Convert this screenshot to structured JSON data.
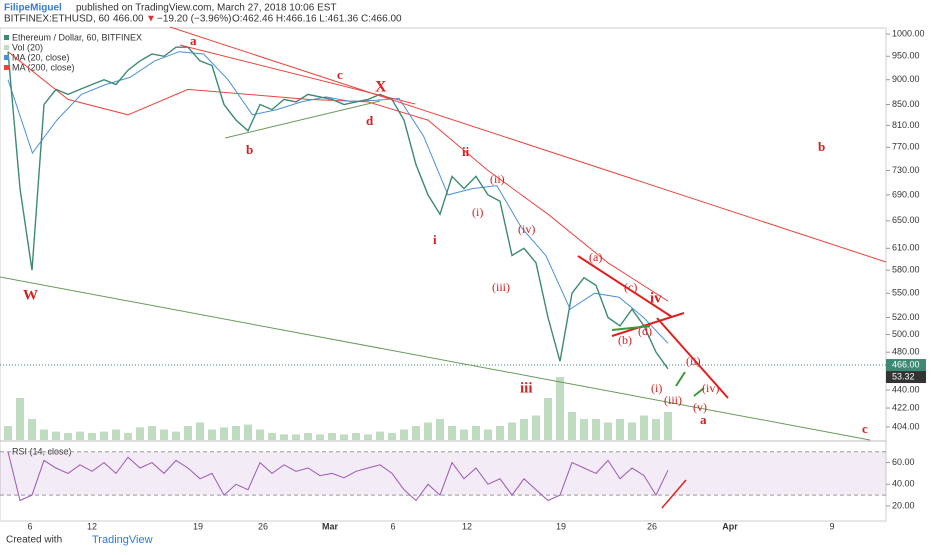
{
  "header": {
    "author": "FilipeMiguel",
    "published": "published on TradingView.com, March 27, 2018 10:06 EST",
    "symbol": "BITFINEX:ETHUSD, 60",
    "last": "466.00",
    "arrow": "▼",
    "change": "−19.20 (−3.96%)",
    "ohlc": "O:462.46 H:466.16 L:461.36 C:466.00"
  },
  "footer": {
    "created": "Created with",
    "brand": "TradingView"
  },
  "time_axis": [
    "6",
    "12",
    "19",
    "26",
    "Mar",
    "6",
    "12",
    "19",
    "26",
    "Apr",
    "9"
  ],
  "annotations": [
    "a",
    "c",
    "X",
    "d",
    "b",
    "W",
    "ii",
    "i",
    "(ii)",
    "(i)",
    "(iv)",
    "(iii)",
    "iii",
    "(a)",
    "(c)",
    "iv",
    "(d)",
    "(b)",
    "(ii)",
    "(i)",
    "(iv)",
    "(iii)",
    "(v)",
    "a",
    "b",
    "c"
  ],
  "chart_data": [
    {
      "type": "line",
      "log_scale": true,
      "ylim": [
        392,
        1014
      ],
      "yticks": [
        {
          "value": 1000,
          "label": "1000.00"
        },
        {
          "value": 950,
          "label": "950.00"
        },
        {
          "value": 900,
          "label": "900.00"
        },
        {
          "value": 850,
          "label": "850.00"
        },
        {
          "value": 810,
          "label": "810.00"
        },
        {
          "value": 770,
          "label": "770.00"
        },
        {
          "value": 730,
          "label": "730.00"
        },
        {
          "value": 690,
          "label": "690.00"
        },
        {
          "value": 650,
          "label": "650.00"
        },
        {
          "value": 610,
          "label": "610.00"
        },
        {
          "value": 580,
          "label": "580.00"
        },
        {
          "value": 550,
          "label": "550.00"
        },
        {
          "value": 520,
          "label": "520.00"
        },
        {
          "value": 500,
          "label": "500.00"
        },
        {
          "value": 480,
          "label": "480.00"
        },
        {
          "value": 440,
          "label": "440.00"
        },
        {
          "value": 422,
          "label": "422.00"
        },
        {
          "value": 404,
          "label": "404.00"
        }
      ],
      "last_price": {
        "value": 466,
        "label": "466.00"
      },
      "series": [
        {
          "name": "Ethereum / Dollar, 60, BITFINEX",
          "color": "#3c8a74",
          "values": [
            960,
            700,
            580,
            850,
            880,
            870,
            880,
            890,
            900,
            890,
            920,
            940,
            955,
            950,
            970,
            970,
            940,
            930,
            850,
            820,
            800,
            850,
            840,
            860,
            855,
            870,
            865,
            860,
            850,
            855,
            860,
            870,
            860,
            820,
            740,
            690,
            660,
            720,
            700,
            720,
            690,
            680,
            600,
            610,
            590,
            520,
            470,
            550,
            570,
            560,
            520,
            510,
            530,
            510,
            480,
            462
          ]
        },
        {
          "name": "Vol (20)",
          "color": "#bfdcc0",
          "values": [
            20,
            60,
            30,
            15,
            12,
            10,
            12,
            10,
            12,
            15,
            10,
            18,
            20,
            15,
            12,
            20,
            25,
            15,
            18,
            20,
            22,
            15,
            10,
            8,
            8,
            10,
            8,
            10,
            8,
            10,
            8,
            12,
            10,
            15,
            20,
            25,
            30,
            20,
            15,
            20,
            15,
            20,
            25,
            30,
            35,
            60,
            90,
            40,
            30,
            30,
            25,
            30,
            25,
            35,
            30,
            40
          ]
        },
        {
          "name": "MA (20, close)",
          "color": "#4a90d9",
          "values": [
            900,
            760,
            820,
            870,
            890,
            905,
            940,
            960,
            955,
            900,
            830,
            840,
            855,
            865,
            856,
            858,
            862,
            790,
            690,
            700,
            705,
            640,
            600,
            530,
            550,
            545,
            520,
            490
          ]
        },
        {
          "name": "MA (200, close)",
          "color": "#e8463d",
          "values": [
            960,
            860,
            830,
            880,
            870,
            860,
            855,
            820,
            730,
            660,
            590,
            540
          ]
        }
      ]
    },
    {
      "type": "line",
      "ylim": [
        7,
        79
      ],
      "yticks": [
        {
          "value": 60,
          "label": "60.00"
        },
        {
          "value": 40,
          "label": "40.00"
        },
        {
          "value": 20,
          "label": "20.00"
        }
      ],
      "band": [
        30,
        70
      ],
      "last_value": 53.32,
      "series": [
        {
          "name": "RSI (14, close)",
          "color": "#9b59b6",
          "values": [
            70,
            25,
            30,
            62,
            55,
            50,
            58,
            52,
            60,
            50,
            65,
            55,
            60,
            50,
            62,
            55,
            45,
            50,
            30,
            40,
            35,
            60,
            50,
            58,
            52,
            55,
            48,
            50,
            46,
            52,
            55,
            58,
            50,
            35,
            25,
            40,
            30,
            60,
            45,
            55,
            40,
            45,
            30,
            45,
            35,
            25,
            30,
            60,
            55,
            50,
            62,
            45,
            55,
            48,
            30,
            53
          ]
        }
      ]
    }
  ]
}
